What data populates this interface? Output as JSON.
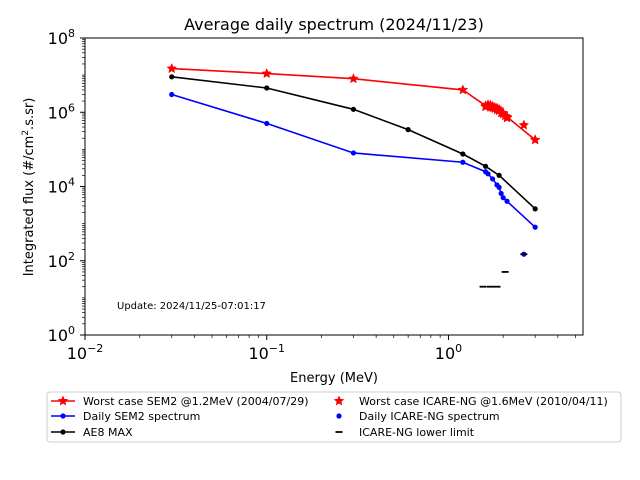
{
  "chart_data": {
    "type": "line",
    "title": "Average daily spectrum (2024/11/23)",
    "xlabel": "Energy (MeV)",
    "ylabel_main": "Integrated flux (#/cm",
    "ylabel_sup": "2",
    "ylabel_tail": ".s.sr)",
    "x_scale": "log",
    "y_scale": "log",
    "xlim": [
      0.01,
      5.5
    ],
    "ylim": [
      1,
      100000000
    ],
    "x_ticks": [
      {
        "value": 0.01,
        "base": "10",
        "exp": "−2"
      },
      {
        "value": 0.1,
        "base": "10",
        "exp": "−1"
      },
      {
        "value": 1,
        "base": "10",
        "exp": "0"
      }
    ],
    "y_ticks": [
      {
        "value": 1,
        "base": "10",
        "exp": "0"
      },
      {
        "value": 100,
        "base": "10",
        "exp": "2"
      },
      {
        "value": 10000,
        "base": "10",
        "exp": "4"
      },
      {
        "value": 1000000,
        "base": "10",
        "exp": "6"
      },
      {
        "value": 100000000,
        "base": "10",
        "exp": "8"
      }
    ],
    "annotation": "Update: 2024/11/25-07:01:17",
    "series": [
      {
        "name": "Worst case SEM2 @1.2MeV (2004/07/29)",
        "color": "#ff0000",
        "marker": "star",
        "line": true,
        "x": [
          0.03,
          0.1,
          0.3,
          1.2,
          1.6,
          1.65,
          1.7,
          1.75,
          1.8,
          1.85,
          1.9,
          2.0,
          2.1,
          3.0
        ],
        "y": [
          15000000,
          11000000,
          8000000,
          4000000,
          1500000,
          1600000,
          1550000,
          1450000,
          1350000,
          1300000,
          1200000,
          950000,
          750000,
          180000
        ]
      },
      {
        "name": "Daily SEM2 spectrum",
        "color": "#0000ff",
        "marker": "dot",
        "line": true,
        "x": [
          0.03,
          0.1,
          0.3,
          1.2,
          1.6,
          1.65,
          1.75,
          1.85,
          1.9,
          1.95,
          2.0,
          2.1,
          3.0
        ],
        "y": [
          3000000,
          500000,
          80000,
          45000,
          25000,
          22000,
          16000,
          11000,
          9500,
          6500,
          5000,
          4000,
          800
        ]
      },
      {
        "name": "AE8 MAX",
        "color": "#000000",
        "marker": "dot",
        "line": true,
        "x": [
          0.03,
          0.1,
          0.3,
          0.6,
          1.2,
          1.6,
          1.9,
          3.0
        ],
        "y": [
          9000000,
          4500000,
          1200000,
          340000,
          75000,
          35000,
          20000,
          2500
        ]
      },
      {
        "name": "Worst case ICARE-NG @1.6MeV (2010/04/11)",
        "color": "#ff0000",
        "marker": "star",
        "line": false,
        "x": [
          1.6,
          1.65,
          1.7,
          1.75,
          1.8,
          1.85,
          1.9,
          1.95,
          2.0,
          2.05,
          2.1,
          2.6,
          3.0
        ],
        "y": [
          1400000,
          1550000,
          1350000,
          1300000,
          1250000,
          1150000,
          1100000,
          950000,
          900000,
          800000,
          700000,
          450000,
          180000
        ]
      },
      {
        "name": "Daily ICARE-NG spectrum",
        "color": "#0000ff",
        "marker": "dot",
        "line": false,
        "x": [
          2.6
        ],
        "y": [
          150
        ]
      },
      {
        "name": "ICARE-NG lower limit",
        "color": "#000000",
        "marker": "hline",
        "line": false,
        "x": [
          1.55,
          1.7,
          1.85,
          2.05,
          2.6
        ],
        "y": [
          20,
          20,
          20,
          50,
          150
        ]
      }
    ],
    "legend": {
      "placement": "below-plot",
      "columns": 2,
      "order": [
        0,
        1,
        2,
        3,
        4,
        5
      ]
    }
  }
}
